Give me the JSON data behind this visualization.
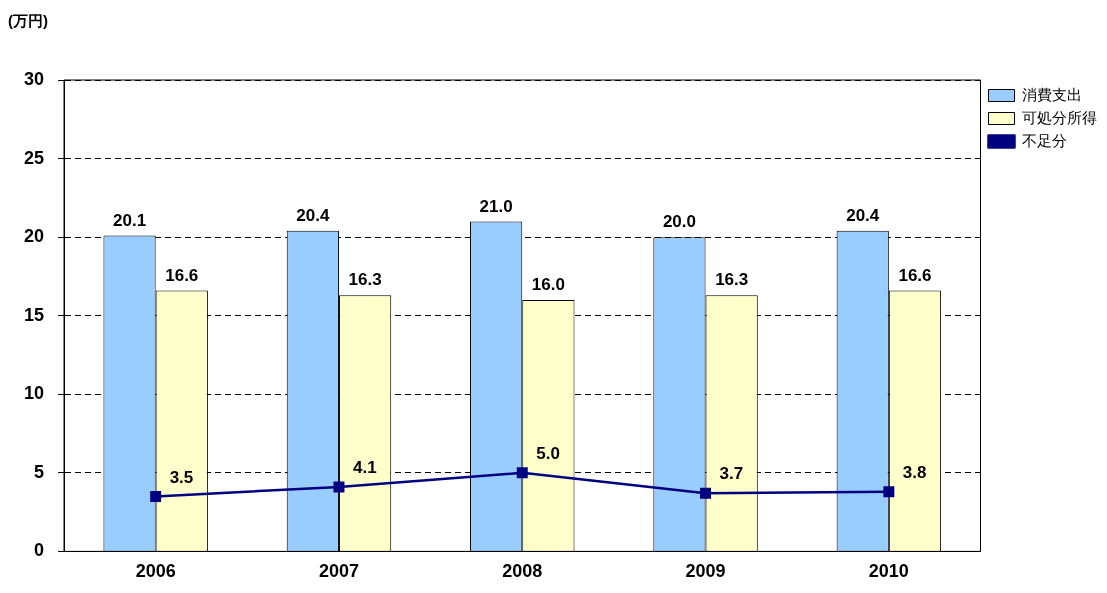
{
  "chart_data": {
    "type": "bar",
    "ylabel": "(万円)",
    "categories": [
      "2006",
      "2007",
      "2008",
      "2009",
      "2010"
    ],
    "series": [
      {
        "name": "消費支出",
        "color": "#99ccff",
        "values": [
          20.1,
          20.4,
          21.0,
          20.0,
          20.4
        ],
        "value_labels": [
          "20.1",
          "20.4",
          "21.0",
          "20.0",
          "20.4"
        ]
      },
      {
        "name": "可処分所得",
        "color": "#ffffcc",
        "values": [
          16.6,
          16.3,
          16.0,
          16.3,
          16.6
        ],
        "value_labels": [
          "16.6",
          "16.3",
          "16.0",
          "16.3",
          "16.6"
        ]
      },
      {
        "name": "不足分",
        "type": "line",
        "color": "#000080",
        "values": [
          3.5,
          4.1,
          5.0,
          3.7,
          3.8
        ],
        "value_labels": [
          "3.5",
          "4.1",
          "5.0",
          "3.7",
          "3.8"
        ]
      }
    ],
    "ylim": [
      0,
      30
    ],
    "yticks": [
      0,
      5,
      10,
      15,
      20,
      25,
      30
    ],
    "grid": "y",
    "legend": "top right",
    "marker": "square",
    "line_style": "solid"
  }
}
